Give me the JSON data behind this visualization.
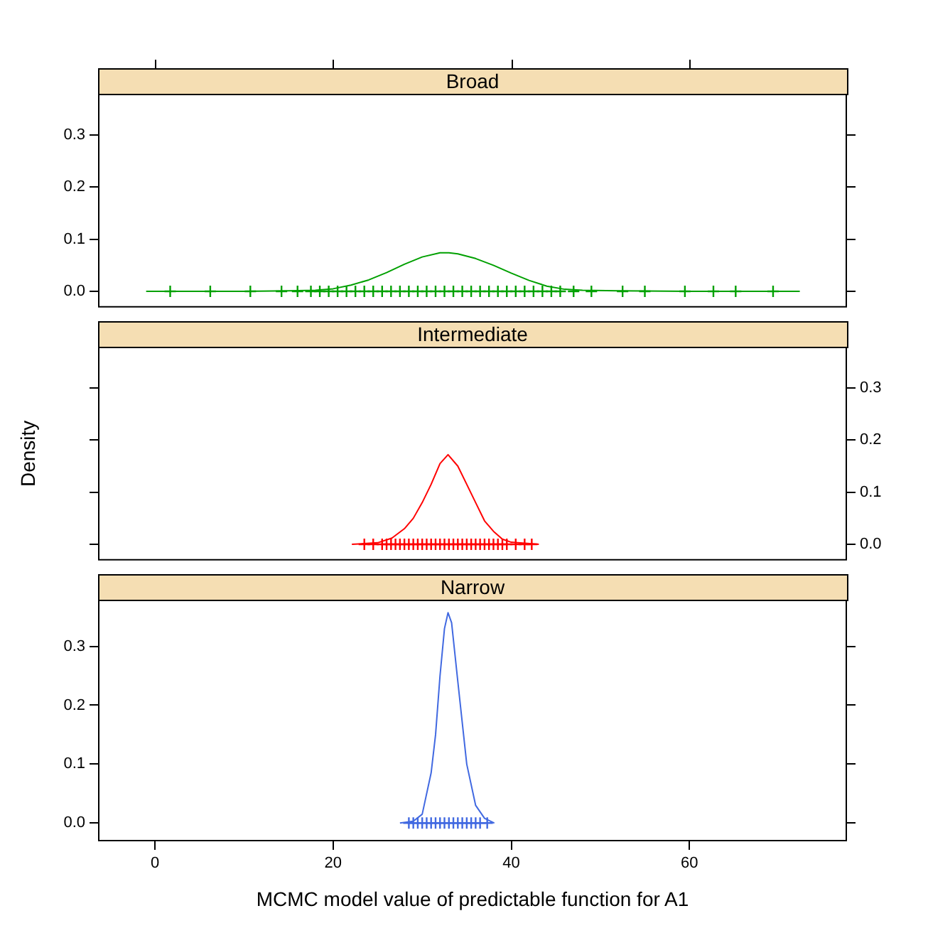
{
  "chart_data": [
    {
      "type": "line",
      "title": "Broad",
      "xlim": [
        -6.4,
        77.7
      ],
      "xticks": [
        {
          "value": 0,
          "label": null
        },
        {
          "value": 20,
          "label": null
        },
        {
          "value": 40,
          "label": null
        },
        {
          "value": 60,
          "label": null
        }
      ],
      "ylim": [
        -0.031,
        0.379
      ],
      "yticks": [
        {
          "value": 0,
          "label": "0.0"
        },
        {
          "value": 0.1,
          "label": "0.1"
        },
        {
          "value": 0.2,
          "label": "0.2"
        },
        {
          "value": 0.3,
          "label": "0.3"
        }
      ],
      "tick_labels": "y",
      "series": [
        {
          "color": "#00a000",
          "marker": "none",
          "x": [
            -1,
            10,
            15,
            18,
            20,
            22,
            24,
            26,
            28,
            30,
            32,
            33,
            34,
            36,
            38,
            40,
            42,
            44,
            46,
            48,
            52,
            60,
            72.4
          ],
          "values": [
            0,
            0,
            0.001,
            0.002,
            0.005,
            0.012,
            0.022,
            0.036,
            0.052,
            0.066,
            0.074,
            0.074,
            0.072,
            0.063,
            0.05,
            0.035,
            0.021,
            0.01,
            0.004,
            0.002,
            0.001,
            0,
            0
          ]
        },
        {
          "type": "scatter",
          "color": "#00a000",
          "marker": "cross",
          "x": [
            1.7,
            6.2,
            10.7,
            14.2,
            16,
            17.5,
            18.5,
            19.5,
            20.5,
            21.5,
            22.5,
            23.5,
            24.5,
            25.5,
            26.5,
            27.5,
            28.5,
            29.5,
            30.5,
            31.5,
            32.5,
            33.5,
            34.5,
            35.5,
            36.5,
            37.5,
            38.5,
            39.5,
            40.5,
            41.5,
            42.5,
            43.5,
            44.5,
            45.5,
            47,
            49,
            52.5,
            55,
            59.5,
            62.7,
            65.2,
            69.4
          ],
          "values": [
            0,
            0,
            0,
            0,
            0,
            0,
            0,
            0,
            0,
            0,
            0,
            0,
            0,
            0,
            0,
            0,
            0,
            0,
            0,
            0,
            0,
            0,
            0,
            0,
            0,
            0,
            0,
            0,
            0,
            0,
            0,
            0,
            0,
            0,
            0,
            0,
            0,
            0,
            0,
            0,
            0,
            0
          ]
        }
      ]
    },
    {
      "type": "line",
      "title": "Intermediate",
      "ylabel": "Density",
      "xlim": [
        -6.4,
        77.7
      ],
      "ylim": [
        -0.031,
        0.379
      ],
      "yticks": [
        {
          "value": 0,
          "label": "0.0"
        },
        {
          "value": 0.1,
          "label": "0.1"
        },
        {
          "value": 0.2,
          "label": "0.2"
        },
        {
          "value": 0.3,
          "label": "0.3"
        }
      ],
      "tick_labels": "y",
      "series": [
        {
          "color": "#ff0000",
          "marker": "none",
          "x": [
            22.1,
            25,
            26.6,
            28,
            29,
            30,
            31,
            32,
            32.9,
            34,
            35,
            36,
            37,
            38,
            39,
            40,
            43.1
          ],
          "values": [
            0,
            0.003,
            0.012,
            0.03,
            0.05,
            0.08,
            0.115,
            0.155,
            0.172,
            0.15,
            0.115,
            0.08,
            0.045,
            0.025,
            0.01,
            0.004,
            0
          ]
        },
        {
          "type": "scatter",
          "color": "#ff0000",
          "marker": "cross",
          "x": [
            23.5,
            24.5,
            25.5,
            26,
            26.5,
            27,
            27.5,
            28,
            28.5,
            29,
            29.5,
            30,
            30.5,
            31,
            31.5,
            32,
            32.5,
            33,
            33.5,
            34,
            34.5,
            35,
            35.5,
            36,
            36.5,
            37,
            37.5,
            38,
            38.5,
            39,
            39.5,
            40.5,
            41.5,
            42.3
          ],
          "values": [
            0,
            0,
            0,
            0,
            0,
            0,
            0,
            0,
            0,
            0,
            0,
            0,
            0,
            0,
            0,
            0,
            0,
            0,
            0,
            0,
            0,
            0,
            0,
            0,
            0,
            0,
            0,
            0,
            0,
            0,
            0,
            0,
            0,
            0
          ]
        }
      ]
    },
    {
      "type": "line",
      "title": "Narrow",
      "xlabel": "MCMC model value of predictable function for A1",
      "xlim": [
        -6.4,
        77.7
      ],
      "xticks": [
        0,
        20,
        40,
        60
      ],
      "ylim": [
        -0.031,
        0.379
      ],
      "yticks": [
        {
          "value": 0,
          "label": "0.0"
        },
        {
          "value": 0.1,
          "label": "0.1"
        },
        {
          "value": 0.2,
          "label": "0.2"
        },
        {
          "value": 0.3,
          "label": "0.3"
        }
      ],
      "series": [
        {
          "color": "#4169e1",
          "marker": "none",
          "x": [
            27.5,
            29,
            30,
            31,
            31.5,
            32,
            32.5,
            32.9,
            33.3,
            34,
            34.5,
            35,
            36,
            37,
            38.1
          ],
          "values": [
            0,
            0.003,
            0.015,
            0.085,
            0.15,
            0.25,
            0.33,
            0.357,
            0.34,
            0.24,
            0.17,
            0.1,
            0.03,
            0.008,
            0
          ]
        },
        {
          "type": "scatter",
          "color": "#4169e1",
          "marker": "cross",
          "x": [
            28.5,
            29,
            29.5,
            30,
            30.5,
            31,
            31.5,
            32,
            32.5,
            33,
            33.5,
            34,
            34.5,
            35,
            35.5,
            36,
            36.5,
            37.3
          ],
          "values": [
            0,
            0,
            0,
            0,
            0,
            0,
            0,
            0,
            0,
            0,
            0,
            0,
            0,
            0,
            0,
            0,
            0,
            0
          ]
        }
      ]
    }
  ]
}
